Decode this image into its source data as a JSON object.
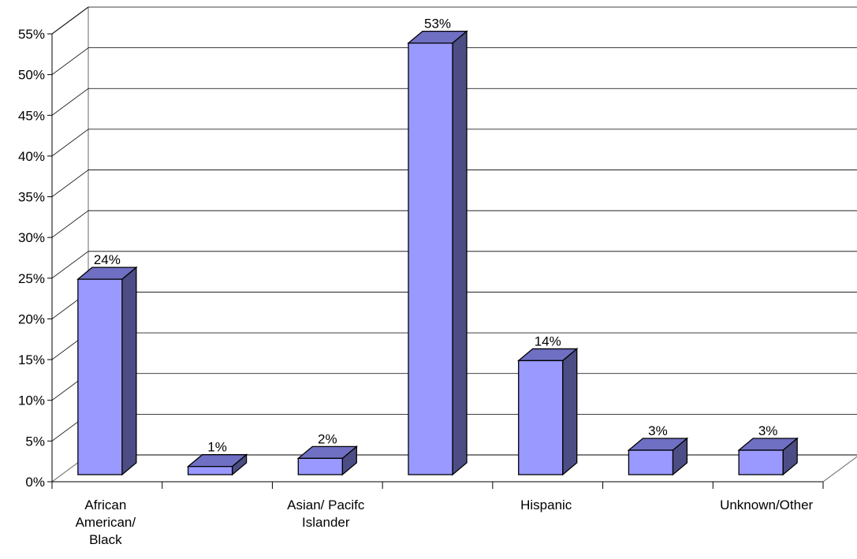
{
  "chart_data": {
    "type": "bar",
    "title": "",
    "xlabel": "",
    "ylabel": "",
    "ylim": [
      0,
      55
    ],
    "y_ticks": [
      "0%",
      "5%",
      "10%",
      "15%",
      "20%",
      "25%",
      "30%",
      "35%",
      "40%",
      "45%",
      "50%",
      "55%"
    ],
    "categories": [
      "African American/ Black",
      "",
      "Asian/ Pacifc Islander",
      "",
      "Hispanic",
      "",
      "Unknown/Other"
    ],
    "category_label_lines": [
      [
        "African",
        "American/",
        "Black"
      ],
      [],
      [
        "Asian/ Pacifc",
        "Islander"
      ],
      [],
      [
        "Hispanic"
      ],
      [],
      [
        "Unknown/Other"
      ]
    ],
    "values": [
      24,
      1,
      2,
      53,
      14,
      3,
      3
    ],
    "data_labels": [
      "24%",
      "1%",
      "2%",
      "53%",
      "14%",
      "3%",
      "3%"
    ],
    "grid": true,
    "legend": "none",
    "style": "3d-column",
    "colors": {
      "bar_front": "#9999FF",
      "bar_side": "#4D4D85",
      "bar_top": "#6F6FC4",
      "grid": "#000000"
    }
  }
}
